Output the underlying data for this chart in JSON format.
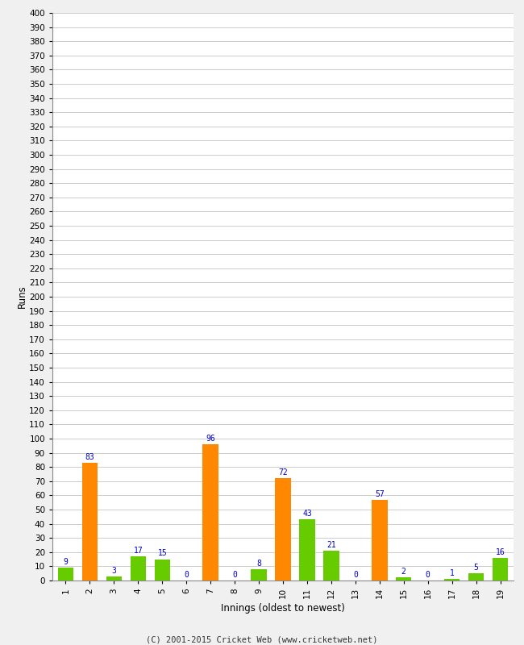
{
  "innings": [
    1,
    2,
    3,
    4,
    5,
    6,
    7,
    8,
    9,
    10,
    11,
    12,
    13,
    14,
    15,
    16,
    17,
    18,
    19
  ],
  "values": [
    9,
    83,
    3,
    17,
    15,
    0,
    96,
    0,
    8,
    72,
    43,
    21,
    0,
    57,
    2,
    0,
    1,
    5,
    16
  ],
  "colors": [
    "#66cc00",
    "#ff8800",
    "#66cc00",
    "#66cc00",
    "#66cc00",
    "#66cc00",
    "#ff8800",
    "#66cc00",
    "#66cc00",
    "#ff8800",
    "#66cc00",
    "#66cc00",
    "#66cc00",
    "#ff8800",
    "#66cc00",
    "#66cc00",
    "#66cc00",
    "#66cc00",
    "#66cc00"
  ],
  "xlabel": "Innings (oldest to newest)",
  "ylabel": "Runs",
  "ylim": [
    0,
    400
  ],
  "yticks": [
    0,
    10,
    20,
    30,
    40,
    50,
    60,
    70,
    80,
    90,
    100,
    110,
    120,
    130,
    140,
    150,
    160,
    170,
    180,
    190,
    200,
    210,
    220,
    230,
    240,
    250,
    260,
    270,
    280,
    290,
    300,
    310,
    320,
    330,
    340,
    350,
    360,
    370,
    380,
    390,
    400
  ],
  "label_color": "#0000cc",
  "plot_bg_color": "#ffffff",
  "fig_bg_color": "#f0f0f0",
  "grid_color": "#cccccc",
  "footer": "(C) 2001-2015 Cricket Web (www.cricketweb.net)"
}
